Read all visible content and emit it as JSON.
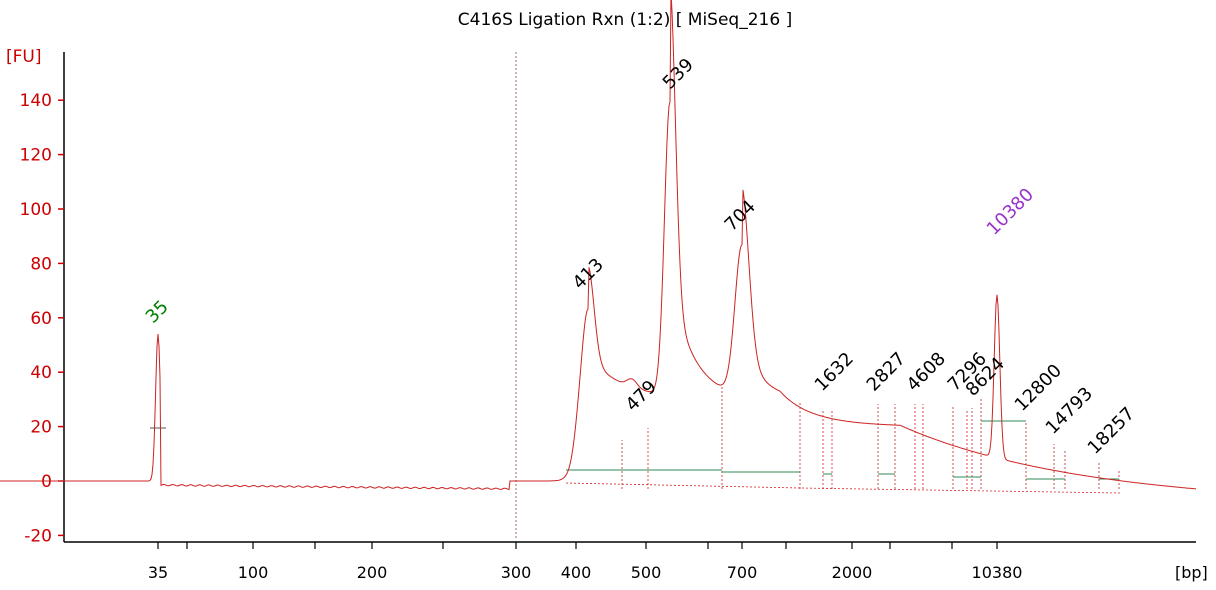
{
  "chart_data": {
    "type": "line",
    "title": "C416S Ligation Rxn (1:2)  [ MiSeq_216 ]",
    "ylabel": "[FU]",
    "xlabel": "[bp]",
    "ylim": [
      -22,
      150
    ],
    "y_ticks": [
      -20,
      0,
      20,
      40,
      60,
      80,
      100,
      120,
      140
    ],
    "x_tick_labels": [
      "35",
      "100",
      "200",
      "300",
      "400",
      "500",
      "700",
      "2000",
      "10380"
    ],
    "colors": {
      "trace": "#cc2222",
      "axis": "#cc0000",
      "marker": "#00a000",
      "upper_marker": "#9933cc",
      "baseline": "#2e8b57"
    },
    "markers": [
      {
        "label": "35",
        "color": "#008000"
      },
      {
        "label": "10380",
        "color": "#9933cc"
      }
    ],
    "peaks": [
      {
        "label": "413",
        "fu": 65
      },
      {
        "label": "479",
        "fu": 21
      },
      {
        "label": "539",
        "fu": 141
      },
      {
        "label": "704",
        "fu": 87
      },
      {
        "label": "1632",
        "fu": 29
      },
      {
        "label": "2827",
        "fu": 29
      },
      {
        "label": "4608",
        "fu": 29
      },
      {
        "label": "7296",
        "fu": 28
      },
      {
        "label": "8624",
        "fu": 27
      },
      {
        "label": "12800",
        "fu": 22
      },
      {
        "label": "14793",
        "fu": 18
      },
      {
        "label": "18257",
        "fu": 10
      }
    ]
  }
}
